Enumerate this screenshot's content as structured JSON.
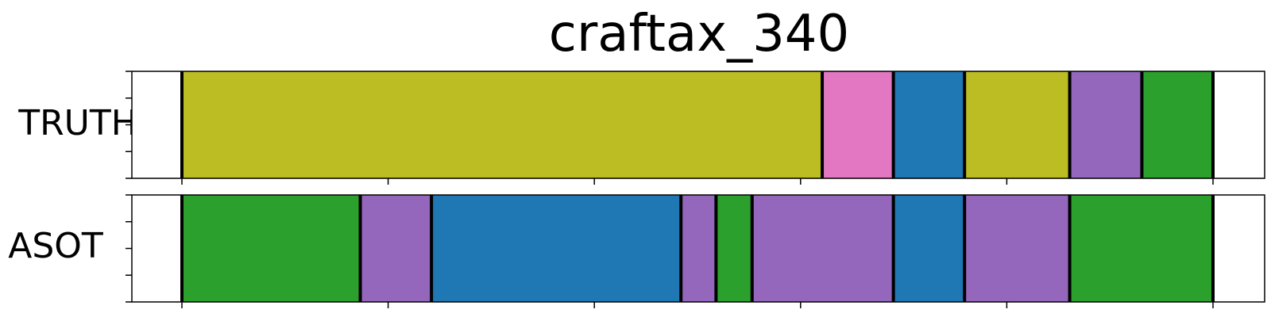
{
  "chart_data": {
    "type": "segmentation-timeline",
    "title": "craftax_340",
    "x_range": [
      0,
      100
    ],
    "colors": {
      "olive": "#bcbd22",
      "pink": "#e377c2",
      "blue": "#1f77b4",
      "purple": "#9467bd",
      "green": "#2ca02c"
    },
    "rows": [
      {
        "label": "TRUTH",
        "segments": [
          {
            "start": 0,
            "end": 62.1,
            "color": "olive"
          },
          {
            "start": 62.1,
            "end": 69.0,
            "color": "pink"
          },
          {
            "start": 69.0,
            "end": 75.9,
            "color": "blue"
          },
          {
            "start": 75.9,
            "end": 86.1,
            "color": "olive"
          },
          {
            "start": 86.1,
            "end": 93.1,
            "color": "purple"
          },
          {
            "start": 93.1,
            "end": 100,
            "color": "green"
          }
        ]
      },
      {
        "label": "ASOT",
        "segments": [
          {
            "start": 0,
            "end": 17.3,
            "color": "green"
          },
          {
            "start": 17.3,
            "end": 24.2,
            "color": "purple"
          },
          {
            "start": 24.2,
            "end": 48.4,
            "color": "blue"
          },
          {
            "start": 48.4,
            "end": 51.8,
            "color": "purple"
          },
          {
            "start": 51.8,
            "end": 55.3,
            "color": "green"
          },
          {
            "start": 55.3,
            "end": 69.0,
            "color": "purple"
          },
          {
            "start": 69.0,
            "end": 75.9,
            "color": "blue"
          },
          {
            "start": 75.9,
            "end": 86.1,
            "color": "purple"
          },
          {
            "start": 86.1,
            "end": 100,
            "color": "green"
          }
        ]
      }
    ]
  }
}
